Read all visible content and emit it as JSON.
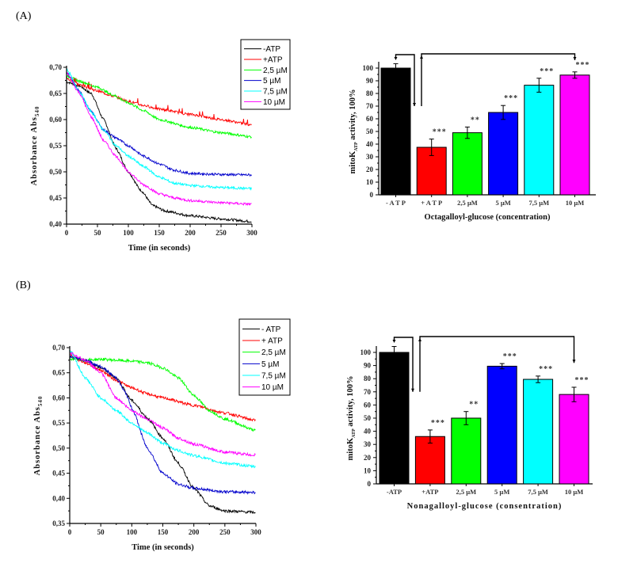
{
  "panels": [
    {
      "label": "(A)"
    },
    {
      "label": "(B)"
    }
  ],
  "chart_data": [
    {
      "id": "A-line",
      "type": "line",
      "title": "",
      "xlabel": "Time (in seconds)",
      "ylabel": "Absorbance Abs",
      "ylabel_sub": "540",
      "xlim": [
        0,
        300
      ],
      "ylim": [
        0.4,
        0.7
      ],
      "xticks": [
        0,
        50,
        100,
        150,
        200,
        250,
        300
      ],
      "xtick_labels": [
        "0",
        "50",
        "100",
        "150",
        "200",
        "250",
        "300"
      ],
      "yticks": [
        0.4,
        0.45,
        0.5,
        0.55,
        0.6,
        0.65,
        0.7
      ],
      "ytick_labels": [
        "0,40",
        "0,45",
        "0,50",
        "0,55",
        "0,60",
        "0,65",
        "0,70"
      ],
      "legend_position": "top-right",
      "series": [
        {
          "name": "-ATP",
          "color": "#000000",
          "x": [
            0,
            20,
            40,
            60,
            80,
            100,
            120,
            140,
            160,
            200,
            250,
            300
          ],
          "y": [
            0.672,
            0.665,
            0.65,
            0.6,
            0.545,
            0.5,
            0.465,
            0.435,
            0.425,
            0.416,
            0.41,
            0.405
          ]
        },
        {
          "name": "+ATP",
          "color": "#ff0000",
          "x": [
            0,
            25,
            50,
            75,
            100,
            125,
            150,
            200,
            250,
            300
          ],
          "y": [
            0.678,
            0.665,
            0.655,
            0.645,
            0.635,
            0.627,
            0.62,
            0.61,
            0.6,
            0.59
          ]
        },
        {
          "name": "2,5 µM",
          "color": "#00ff00",
          "x": [
            0,
            25,
            50,
            75,
            100,
            125,
            150,
            200,
            250,
            300
          ],
          "y": [
            0.683,
            0.672,
            0.662,
            0.647,
            0.632,
            0.617,
            0.6,
            0.585,
            0.575,
            0.567
          ]
        },
        {
          "name": "5 µM",
          "color": "#0000cc",
          "x": [
            0,
            20,
            40,
            60,
            80,
            100,
            125,
            150,
            175,
            200,
            250,
            300
          ],
          "y": [
            0.69,
            0.655,
            0.615,
            0.58,
            0.565,
            0.55,
            0.53,
            0.515,
            0.503,
            0.497,
            0.495,
            0.494
          ]
        },
        {
          "name": "7,5 µM",
          "color": "#00ffff",
          "x": [
            0,
            20,
            40,
            60,
            80,
            100,
            125,
            150,
            175,
            200,
            250,
            300
          ],
          "y": [
            0.697,
            0.655,
            0.615,
            0.58,
            0.55,
            0.53,
            0.51,
            0.49,
            0.478,
            0.474,
            0.47,
            0.468
          ]
        },
        {
          "name": "10 µM",
          "color": "#ff00ff",
          "x": [
            0,
            20,
            40,
            60,
            80,
            100,
            125,
            150,
            175,
            200,
            250,
            300
          ],
          "y": [
            0.69,
            0.652,
            0.605,
            0.56,
            0.53,
            0.5,
            0.475,
            0.458,
            0.45,
            0.445,
            0.441,
            0.438
          ]
        }
      ]
    },
    {
      "id": "A-bar",
      "type": "bar",
      "title": "",
      "xlabel": "Octagalloyl-glucose (concentration)",
      "ylabel": "mitoK",
      "ylabel_sub": "ATP",
      "ylabel_suffix": " activity, 100%",
      "ylim": [
        0,
        100
      ],
      "yticks": [
        0,
        10,
        20,
        30,
        40,
        50,
        60,
        70,
        80,
        90,
        100
      ],
      "ytick_labels": [
        "0",
        "10",
        "20",
        "30",
        "40",
        "50",
        "60",
        "70",
        "80",
        "90",
        "100"
      ],
      "categories": [
        "- A T P",
        "+ A T P",
        "2,5 µM",
        "5 µM",
        "7,5 µM",
        "10 µM"
      ],
      "values": [
        100,
        37.5,
        49,
        65,
        86.5,
        94.5
      ],
      "errors": [
        3.5,
        6.5,
        4.5,
        5.5,
        5.5,
        2.5
      ],
      "significance": [
        "",
        "***",
        "**",
        "***",
        "***",
        "***"
      ],
      "colors": [
        "#000000",
        "#ff0000",
        "#00ff00",
        "#0000ff",
        "#00ffff",
        "#ff00ff"
      ],
      "comparisons": [
        {
          "from": 0,
          "to": 1
        },
        {
          "from": 1,
          "to": 5
        }
      ]
    },
    {
      "id": "B-line",
      "type": "line",
      "title": "",
      "xlabel": "Time (in seconds)",
      "ylabel": "Absorbance Abs",
      "ylabel_sub": "540",
      "xlim": [
        0,
        300
      ],
      "ylim": [
        0.35,
        0.7
      ],
      "xticks": [
        0,
        50,
        100,
        150,
        200,
        250,
        300
      ],
      "xtick_labels": [
        "0",
        "50",
        "100",
        "150",
        "200",
        "250",
        "300"
      ],
      "yticks": [
        0.35,
        0.4,
        0.45,
        0.5,
        0.55,
        0.6,
        0.65,
        0.7
      ],
      "ytick_labels": [
        "0,35",
        "0,40",
        "0,45",
        "0,50",
        "0,55",
        "0,60",
        "0,65",
        "0,70"
      ],
      "legend_position": "top-right",
      "series": [
        {
          "name": "- ATP",
          "color": "#000000",
          "x": [
            0,
            25,
            50,
            75,
            100,
            125,
            150,
            175,
            200,
            225,
            250,
            300
          ],
          "y": [
            0.68,
            0.675,
            0.66,
            0.64,
            0.595,
            0.56,
            0.52,
            0.47,
            0.42,
            0.385,
            0.375,
            0.372
          ]
        },
        {
          "name": "+ ATP",
          "color": "#ff0000",
          "x": [
            0,
            25,
            50,
            75,
            100,
            125,
            150,
            200,
            250,
            300
          ],
          "y": [
            0.685,
            0.67,
            0.655,
            0.635,
            0.62,
            0.608,
            0.6,
            0.585,
            0.57,
            0.555
          ]
        },
        {
          "name": "2,5 µM",
          "color": "#00ff00",
          "x": [
            0,
            25,
            50,
            75,
            100,
            125,
            150,
            175,
            200,
            225,
            250,
            300
          ],
          "y": [
            0.678,
            0.675,
            0.677,
            0.675,
            0.673,
            0.67,
            0.66,
            0.64,
            0.605,
            0.575,
            0.558,
            0.535
          ]
        },
        {
          "name": "5 µM",
          "color": "#0000cc",
          "x": [
            0,
            25,
            50,
            75,
            90,
            100,
            125,
            150,
            175,
            200,
            250,
            300
          ],
          "y": [
            0.682,
            0.675,
            0.662,
            0.64,
            0.61,
            0.58,
            0.5,
            0.45,
            0.428,
            0.42,
            0.413,
            0.412
          ]
        },
        {
          "name": "7,5 µM",
          "color": "#00ffff",
          "x": [
            0,
            25,
            50,
            75,
            100,
            125,
            150,
            175,
            200,
            250,
            300
          ],
          "y": [
            0.695,
            0.64,
            0.6,
            0.575,
            0.55,
            0.53,
            0.51,
            0.495,
            0.485,
            0.47,
            0.463
          ]
        },
        {
          "name": "10 µM",
          "color": "#ff00ff",
          "x": [
            0,
            25,
            50,
            75,
            100,
            125,
            150,
            175,
            200,
            250,
            300
          ],
          "y": [
            0.69,
            0.675,
            0.65,
            0.6,
            0.575,
            0.558,
            0.54,
            0.52,
            0.508,
            0.492,
            0.486
          ]
        }
      ]
    },
    {
      "id": "B-bar",
      "type": "bar",
      "title": "",
      "xlabel": "Nonagalloyl-glucose (consentration)",
      "ylabel": "mitoK",
      "ylabel_sub": "ATP",
      "ylabel_suffix": " activity, 100%",
      "ylim": [
        0,
        100
      ],
      "yticks": [
        0,
        10,
        20,
        30,
        40,
        50,
        60,
        70,
        80,
        90,
        100
      ],
      "ytick_labels": [
        "0",
        "10",
        "20",
        "30",
        "40",
        "50",
        "60",
        "70",
        "80",
        "90",
        "100"
      ],
      "categories": [
        "-ATP",
        "+ATP",
        "2,5 µM",
        "5 µM",
        "7,5 µM",
        "10 µM"
      ],
      "values": [
        100,
        36,
        50,
        89.5,
        79.5,
        68
      ],
      "errors": [
        4.5,
        5,
        5,
        2,
        2.5,
        5.5
      ],
      "significance": [
        "",
        "***",
        "**",
        "***",
        "***",
        "***"
      ],
      "colors": [
        "#000000",
        "#ff0000",
        "#00ff00",
        "#0000ff",
        "#00ffff",
        "#ff00ff"
      ],
      "comparisons": [
        {
          "from": 0,
          "to": 1
        },
        {
          "from": 1,
          "to": 5
        }
      ]
    }
  ]
}
